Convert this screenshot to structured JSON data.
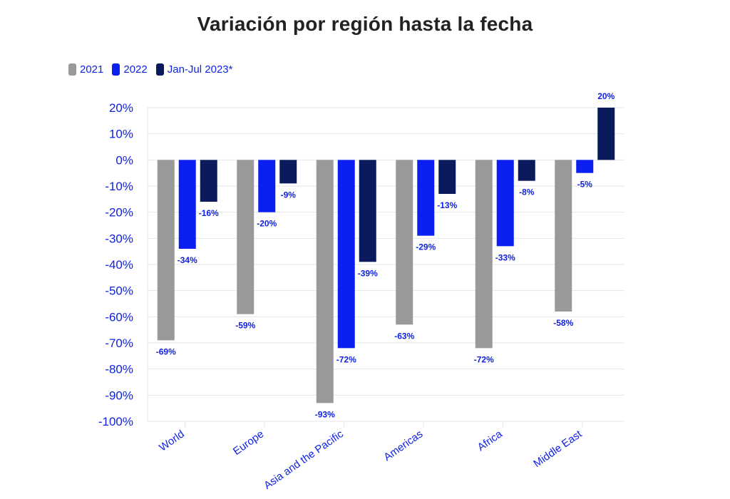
{
  "colors": {
    "series_2021": "#999999",
    "series_2022": "#0a1ff0",
    "series_2023": "#0a1a5c",
    "label_text": "#1022e0",
    "grid": "#e4e4e4"
  },
  "chart_data": {
    "type": "bar",
    "title": "Variación por región hasta la fecha",
    "categories": [
      "World",
      "Europe",
      "Asia and the Pacific",
      "Americas",
      "Africa",
      "Middle East"
    ],
    "series": [
      {
        "name": "2021",
        "values": [
          -69,
          -59,
          -93,
          -63,
          -72,
          -58
        ]
      },
      {
        "name": "2022",
        "values": [
          -34,
          -20,
          -72,
          -29,
          -33,
          -5
        ]
      },
      {
        "name": "Jan-Jul 2023*",
        "values": [
          -16,
          -9,
          -39,
          -13,
          -8,
          20
        ]
      }
    ],
    "data_labels": [
      [
        "-69%",
        "-59%",
        "-93%",
        "-63%",
        "-72%",
        "-58%"
      ],
      [
        "-34%",
        "-20%",
        "-72%",
        "-29%",
        "-33%",
        "-5%"
      ],
      [
        "-16%",
        "-9%",
        "-39%",
        "-13%",
        "-8%",
        "20%"
      ]
    ],
    "ylim": [
      -100,
      20
    ],
    "yticks": [
      20,
      10,
      0,
      -10,
      -20,
      -30,
      -40,
      -50,
      -60,
      -70,
      -80,
      -90,
      -100
    ],
    "ytick_labels": [
      "20%",
      "10%",
      "0%",
      "-10%",
      "-20%",
      "-30%",
      "-40%",
      "-50%",
      "-60%",
      "-70%",
      "-80%",
      "-90%",
      "-100%"
    ],
    "grid": true,
    "legend_position": "top-left",
    "xlabel": "",
    "ylabel": ""
  }
}
